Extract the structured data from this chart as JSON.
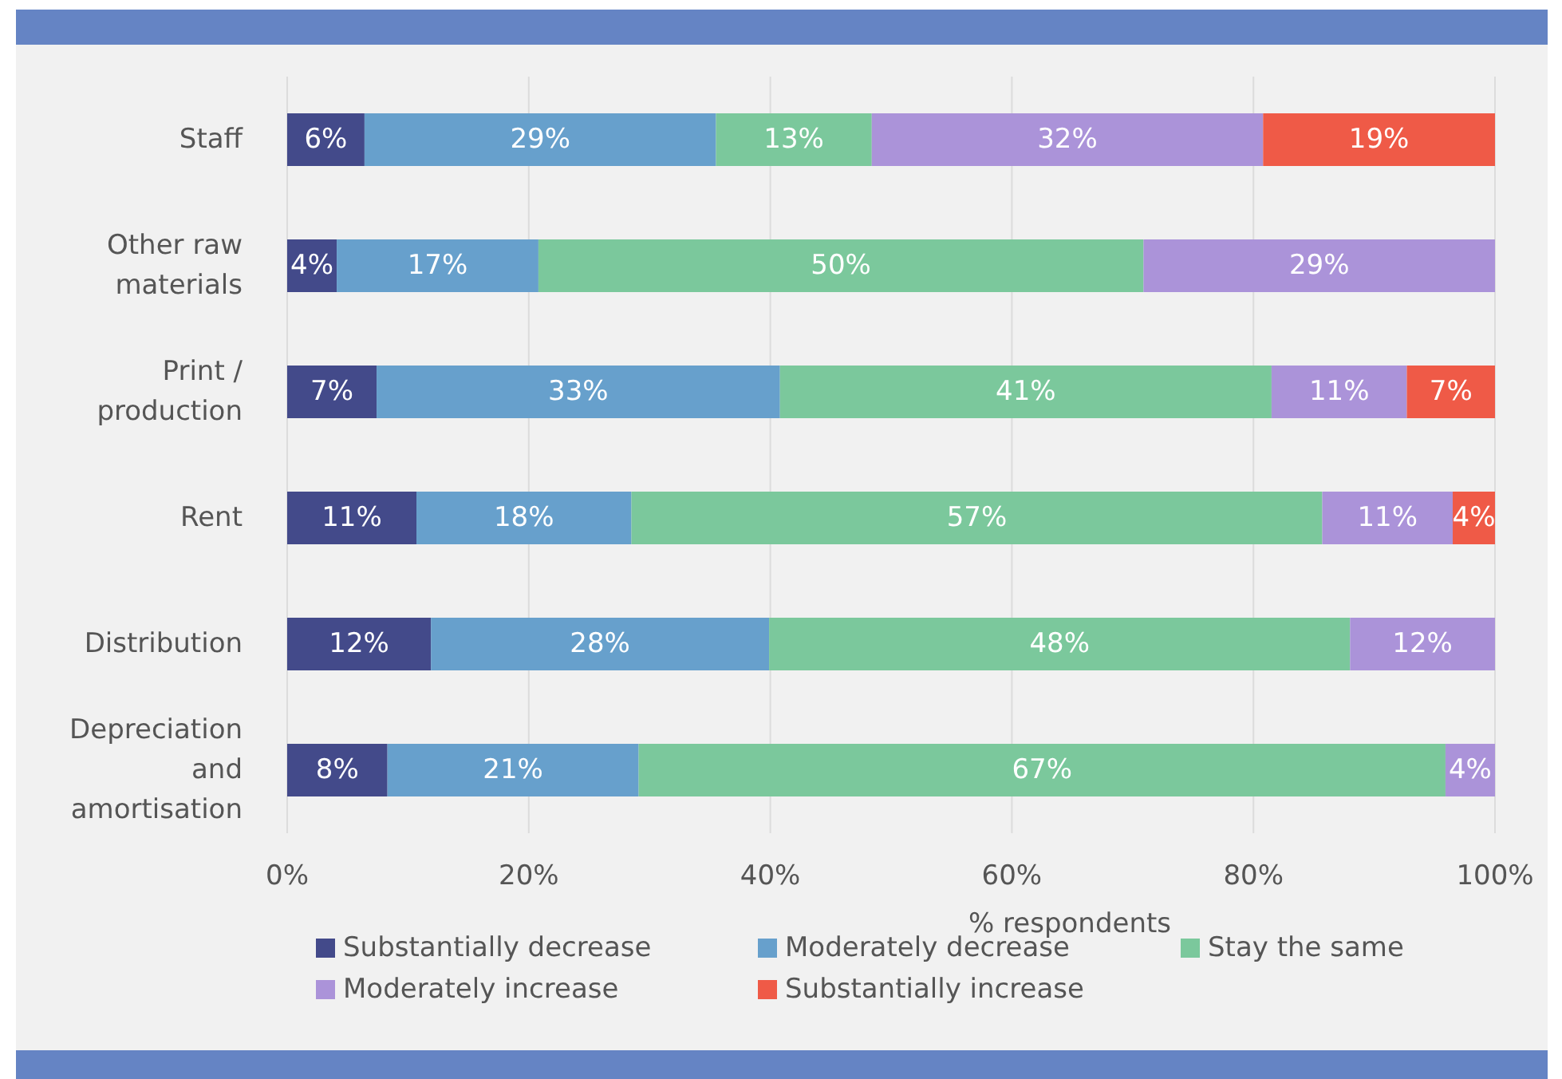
{
  "chart_data": {
    "type": "bar",
    "orientation": "horizontal",
    "stacked": true,
    "xlabel": "% respondents",
    "categories": [
      "Staff",
      "Other raw materials",
      "Print / production",
      "Rent",
      "Distribution",
      "Depreciation and amortisation"
    ],
    "series": [
      {
        "name": "Substantially decrease",
        "color": "#434a8a",
        "values": [
          6.4,
          4.1,
          7.4,
          10.7,
          11.9,
          8.3
        ],
        "value_labels": [
          "6%",
          "4%",
          "7%",
          "11%",
          "12%",
          "8%"
        ]
      },
      {
        "name": "Moderately decrease",
        "color": "#67a0cc",
        "values": [
          29.1,
          16.7,
          33.4,
          17.8,
          28,
          20.8
        ],
        "value_labels": [
          "29%",
          "17%",
          "33%",
          "18%",
          "28%",
          "21%"
        ]
      },
      {
        "name": "Stay the same",
        "color": "#7bc89c",
        "values": [
          12.9,
          50.1,
          40.7,
          57.2,
          48.1,
          66.8
        ],
        "value_labels": [
          "13%",
          "50%",
          "41%",
          "57%",
          "48%",
          "67%"
        ]
      },
      {
        "name": "Moderately increase",
        "color": "#ab93d9",
        "values": [
          32.4,
          29.1,
          11.2,
          10.8,
          12,
          4.1
        ],
        "value_labels": [
          "32%",
          "29%",
          "11%",
          "11%",
          "12%",
          "4%"
        ]
      },
      {
        "name": "Substantially increase",
        "color": "#ef5a47",
        "values": [
          19.2,
          null,
          7.3,
          3.5,
          null,
          null
        ],
        "value_labels": [
          "19%",
          null,
          "7%",
          "4%",
          null,
          null
        ]
      }
    ],
    "xlim": [
      0,
      100
    ],
    "xticks": [
      {
        "value": 0,
        "label": "0%"
      },
      {
        "value": 20,
        "label": "20%"
      },
      {
        "value": 40,
        "label": "40%"
      },
      {
        "value": 60,
        "label": "60%"
      },
      {
        "value": 80,
        "label": "80%"
      },
      {
        "value": 100,
        "label": "100%"
      }
    ],
    "grid": "x",
    "legend": "bottom"
  }
}
